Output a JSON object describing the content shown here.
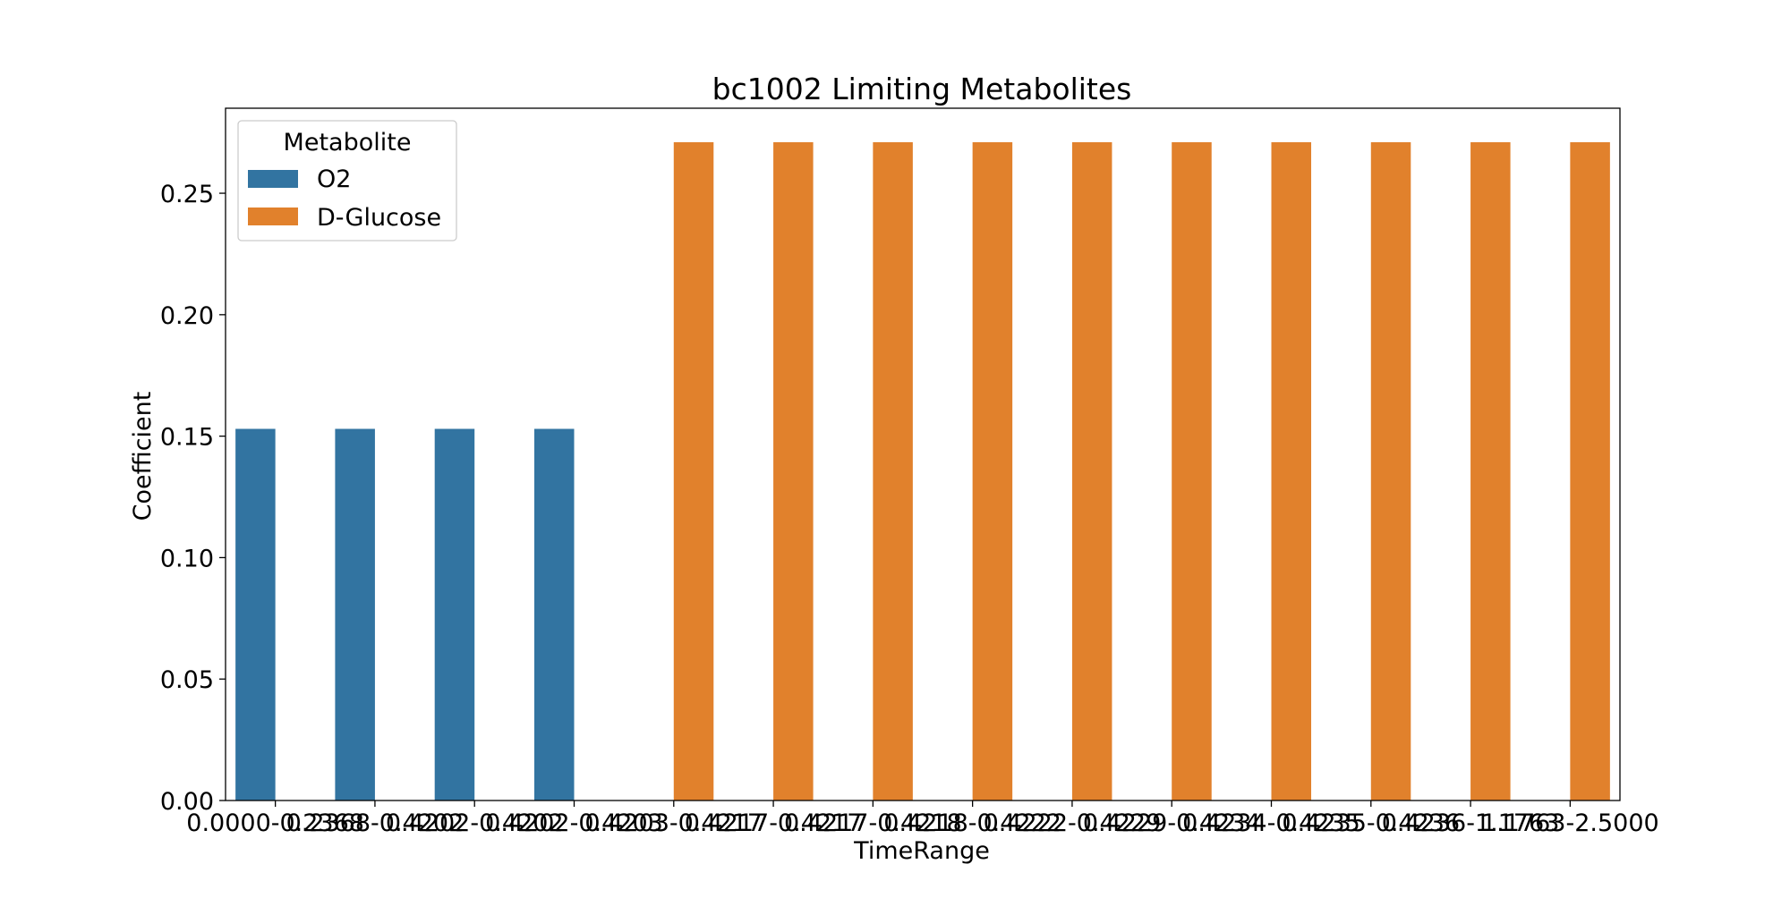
{
  "chart_data": {
    "type": "bar",
    "title": "bc1002 Limiting Metabolites",
    "xlabel": "TimeRange",
    "ylabel": "Coefficient",
    "ylim": [
      0,
      0.285
    ],
    "yticks": [
      0.0,
      0.05,
      0.1,
      0.15,
      0.2,
      0.25
    ],
    "ytick_labels": [
      "0.00",
      "0.05",
      "0.10",
      "0.15",
      "0.20",
      "0.25"
    ],
    "grid": false,
    "legend": {
      "title": "Metabolite",
      "placement": "top-left",
      "entries": [
        {
          "name": "O2",
          "color": "#3274a1"
        },
        {
          "name": "D-Glucose",
          "color": "#e1812c"
        }
      ]
    },
    "categories": [
      "0.0000-0.2368",
      "0.2368-0.4202",
      "0.4202-0.4202",
      "0.4202-0.4203",
      "0.4203-0.4217",
      "0.4217-0.4217",
      "0.4217-0.4218",
      "0.4218-0.4222",
      "0.4222-0.4229",
      "0.4229-0.4234",
      "0.4234-0.4235",
      "0.4235-0.4236",
      "0.4236-1.1763",
      "1.1763-2.5000"
    ],
    "series": [
      {
        "name": "O2",
        "color": "#3274a1",
        "values": [
          0.153,
          0.153,
          0.153,
          0.153,
          null,
          null,
          null,
          null,
          null,
          null,
          null,
          null,
          null,
          null
        ]
      },
      {
        "name": "D-Glucose",
        "color": "#e1812c",
        "values": [
          null,
          null,
          null,
          null,
          0.271,
          0.271,
          0.271,
          0.271,
          0.271,
          0.271,
          0.271,
          0.271,
          0.271,
          0.271
        ]
      }
    ]
  }
}
